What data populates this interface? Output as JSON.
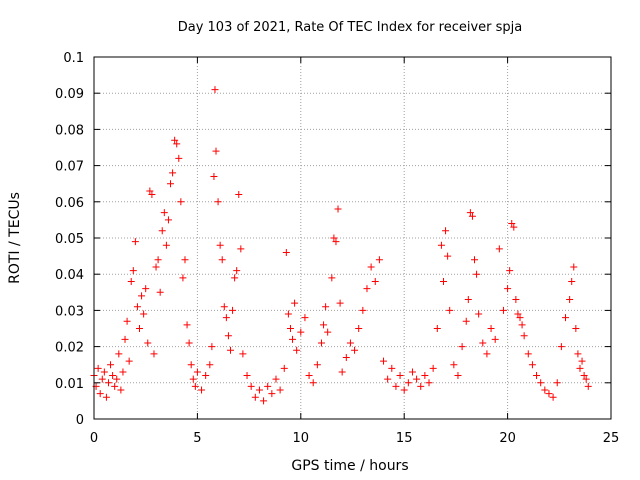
{
  "chart_data": {
    "type": "scatter",
    "title": "Day 103 of 2021, Rate Of TEC Index for receiver spja",
    "xlabel": "GPS time / hours",
    "ylabel": "ROTI / TECUs",
    "xlim": [
      0,
      25
    ],
    "ylim": [
      0,
      0.1
    ],
    "x_ticks": [
      "0",
      "5",
      "10",
      "15",
      "20",
      "25"
    ],
    "y_ticks": [
      "0",
      "0.01",
      "0.02",
      "0.03",
      "0.04",
      "0.05",
      "0.06",
      "0.07",
      "0.08",
      "0.09",
      "0.1"
    ],
    "grid": true,
    "marker": "plus",
    "series_color": "#ff0000",
    "series": [
      {
        "name": "ROTI",
        "points": [
          [
            0.0,
            0.012
          ],
          [
            0.1,
            0.009
          ],
          [
            0.2,
            0.014
          ],
          [
            0.3,
            0.007
          ],
          [
            0.4,
            0.011
          ],
          [
            0.5,
            0.013
          ],
          [
            0.6,
            0.006
          ],
          [
            0.7,
            0.01
          ],
          [
            0.8,
            0.015
          ],
          [
            0.9,
            0.012
          ],
          [
            1.0,
            0.009
          ],
          [
            1.1,
            0.011
          ],
          [
            1.2,
            0.018
          ],
          [
            1.3,
            0.008
          ],
          [
            1.4,
            0.013
          ],
          [
            1.5,
            0.022
          ],
          [
            1.6,
            0.027
          ],
          [
            1.7,
            0.016
          ],
          [
            1.8,
            0.038
          ],
          [
            1.9,
            0.041
          ],
          [
            2.0,
            0.049
          ],
          [
            2.1,
            0.031
          ],
          [
            2.2,
            0.025
          ],
          [
            2.3,
            0.034
          ],
          [
            2.4,
            0.029
          ],
          [
            2.5,
            0.036
          ],
          [
            2.6,
            0.021
          ],
          [
            2.7,
            0.063
          ],
          [
            2.8,
            0.062
          ],
          [
            2.9,
            0.018
          ],
          [
            3.0,
            0.042
          ],
          [
            3.1,
            0.044
          ],
          [
            3.2,
            0.035
          ],
          [
            3.3,
            0.052
          ],
          [
            3.4,
            0.057
          ],
          [
            3.5,
            0.048
          ],
          [
            3.6,
            0.055
          ],
          [
            3.7,
            0.065
          ],
          [
            3.8,
            0.068
          ],
          [
            3.9,
            0.077
          ],
          [
            4.0,
            0.076
          ],
          [
            4.1,
            0.072
          ],
          [
            4.2,
            0.06
          ],
          [
            4.3,
            0.039
          ],
          [
            4.4,
            0.044
          ],
          [
            4.5,
            0.026
          ],
          [
            4.6,
            0.021
          ],
          [
            4.7,
            0.015
          ],
          [
            4.8,
            0.011
          ],
          [
            4.9,
            0.009
          ],
          [
            5.0,
            0.013
          ],
          [
            5.2,
            0.008
          ],
          [
            5.4,
            0.012
          ],
          [
            5.6,
            0.015
          ],
          [
            5.7,
            0.02
          ],
          [
            5.8,
            0.067
          ],
          [
            5.85,
            0.091
          ],
          [
            5.9,
            0.074
          ],
          [
            6.0,
            0.06
          ],
          [
            6.1,
            0.048
          ],
          [
            6.2,
            0.044
          ],
          [
            6.3,
            0.031
          ],
          [
            6.4,
            0.028
          ],
          [
            6.5,
            0.023
          ],
          [
            6.6,
            0.019
          ],
          [
            6.7,
            0.03
          ],
          [
            6.8,
            0.039
          ],
          [
            6.9,
            0.041
          ],
          [
            7.0,
            0.062
          ],
          [
            7.1,
            0.047
          ],
          [
            7.2,
            0.018
          ],
          [
            7.4,
            0.012
          ],
          [
            7.6,
            0.009
          ],
          [
            7.8,
            0.006
          ],
          [
            8.0,
            0.008
          ],
          [
            8.2,
            0.005
          ],
          [
            8.4,
            0.009
          ],
          [
            8.6,
            0.007
          ],
          [
            8.8,
            0.011
          ],
          [
            9.0,
            0.008
          ],
          [
            9.2,
            0.014
          ],
          [
            9.3,
            0.046
          ],
          [
            9.4,
            0.029
          ],
          [
            9.5,
            0.025
          ],
          [
            9.6,
            0.022
          ],
          [
            9.7,
            0.032
          ],
          [
            9.8,
            0.019
          ],
          [
            10.0,
            0.024
          ],
          [
            10.2,
            0.028
          ],
          [
            10.4,
            0.012
          ],
          [
            10.6,
            0.01
          ],
          [
            10.8,
            0.015
          ],
          [
            11.0,
            0.021
          ],
          [
            11.1,
            0.026
          ],
          [
            11.2,
            0.031
          ],
          [
            11.3,
            0.024
          ],
          [
            11.5,
            0.039
          ],
          [
            11.6,
            0.05
          ],
          [
            11.7,
            0.049
          ],
          [
            11.8,
            0.058
          ],
          [
            11.9,
            0.032
          ],
          [
            12.0,
            0.013
          ],
          [
            12.2,
            0.017
          ],
          [
            12.4,
            0.021
          ],
          [
            12.6,
            0.019
          ],
          [
            12.8,
            0.025
          ],
          [
            13.0,
            0.03
          ],
          [
            13.2,
            0.036
          ],
          [
            13.4,
            0.042
          ],
          [
            13.6,
            0.038
          ],
          [
            13.8,
            0.044
          ],
          [
            14.0,
            0.016
          ],
          [
            14.2,
            0.011
          ],
          [
            14.4,
            0.014
          ],
          [
            14.6,
            0.009
          ],
          [
            14.8,
            0.012
          ],
          [
            15.0,
            0.008
          ],
          [
            15.2,
            0.01
          ],
          [
            15.4,
            0.013
          ],
          [
            15.6,
            0.011
          ],
          [
            15.8,
            0.009
          ],
          [
            16.0,
            0.012
          ],
          [
            16.2,
            0.01
          ],
          [
            16.4,
            0.014
          ],
          [
            16.6,
            0.025
          ],
          [
            16.8,
            0.048
          ],
          [
            16.9,
            0.038
          ],
          [
            17.0,
            0.052
          ],
          [
            17.1,
            0.045
          ],
          [
            17.2,
            0.03
          ],
          [
            17.4,
            0.015
          ],
          [
            17.6,
            0.012
          ],
          [
            17.8,
            0.02
          ],
          [
            18.0,
            0.027
          ],
          [
            18.1,
            0.033
          ],
          [
            18.2,
            0.057
          ],
          [
            18.3,
            0.056
          ],
          [
            18.4,
            0.044
          ],
          [
            18.5,
            0.04
          ],
          [
            18.6,
            0.029
          ],
          [
            18.8,
            0.021
          ],
          [
            19.0,
            0.018
          ],
          [
            19.2,
            0.025
          ],
          [
            19.4,
            0.022
          ],
          [
            19.6,
            0.047
          ],
          [
            19.8,
            0.03
          ],
          [
            20.0,
            0.036
          ],
          [
            20.1,
            0.041
          ],
          [
            20.2,
            0.054
          ],
          [
            20.3,
            0.053
          ],
          [
            20.4,
            0.033
          ],
          [
            20.5,
            0.029
          ],
          [
            20.6,
            0.028
          ],
          [
            20.7,
            0.026
          ],
          [
            20.8,
            0.023
          ],
          [
            21.0,
            0.018
          ],
          [
            21.2,
            0.015
          ],
          [
            21.4,
            0.012
          ],
          [
            21.6,
            0.01
          ],
          [
            21.8,
            0.008
          ],
          [
            22.0,
            0.007
          ],
          [
            22.2,
            0.006
          ],
          [
            22.4,
            0.01
          ],
          [
            22.6,
            0.02
          ],
          [
            22.8,
            0.028
          ],
          [
            23.0,
            0.033
          ],
          [
            23.1,
            0.038
          ],
          [
            23.2,
            0.042
          ],
          [
            23.3,
            0.025
          ],
          [
            23.4,
            0.018
          ],
          [
            23.5,
            0.014
          ],
          [
            23.6,
            0.016
          ],
          [
            23.7,
            0.012
          ],
          [
            23.8,
            0.011
          ],
          [
            23.9,
            0.009
          ]
        ]
      }
    ]
  }
}
